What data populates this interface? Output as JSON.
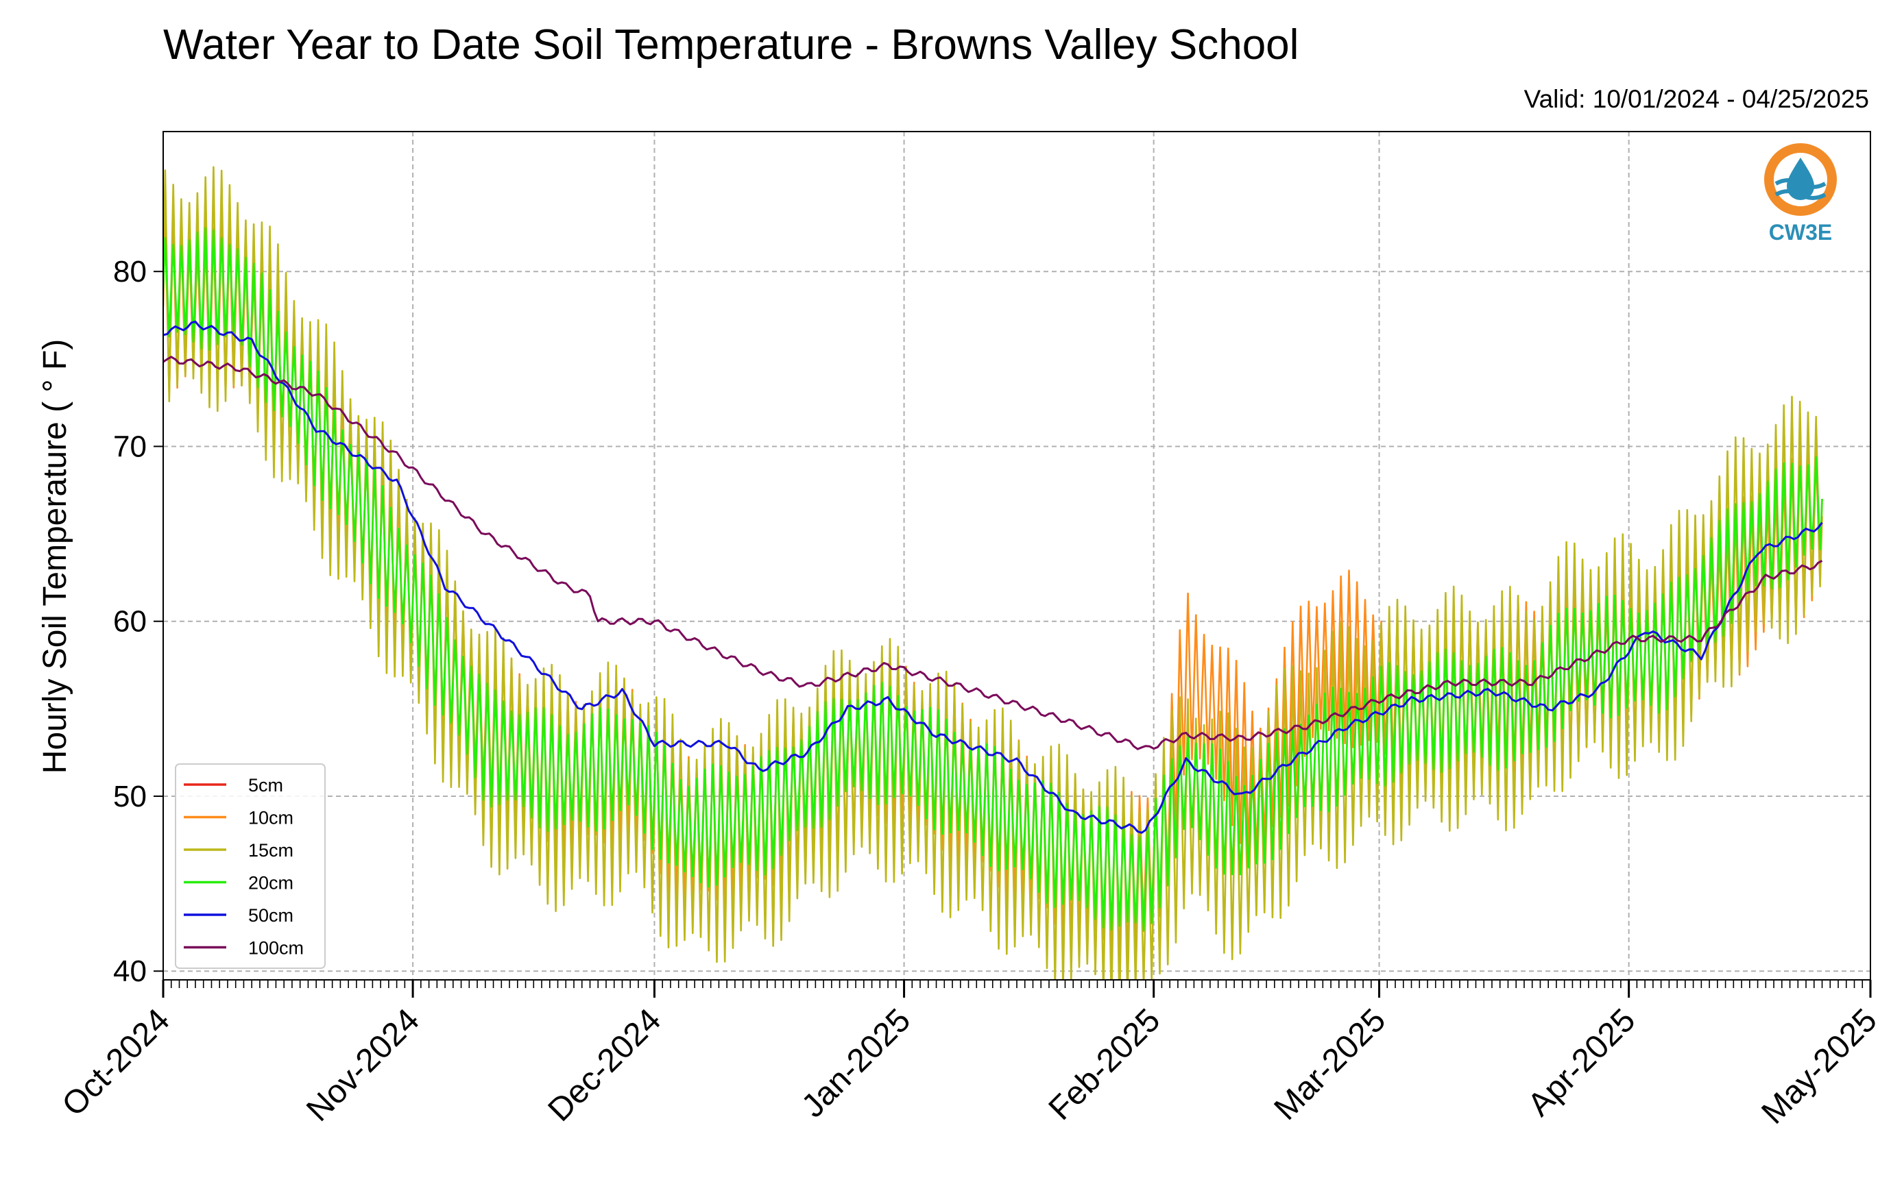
{
  "chart_data": {
    "type": "line",
    "title": "Water Year to Date Soil Temperature - Browns Valley School",
    "subtitle": "Valid: 10/01/2024 - 04/25/2025",
    "ylabel": "Hourly Soil Temperature ($^\\circ$F)",
    "ylabel_display": "Hourly Soil Temperature ( ° F)",
    "xlabel": "",
    "x_range": [
      "2024-10-01",
      "2025-05-01"
    ],
    "ylim": [
      39.5,
      88
    ],
    "yticks": [
      40,
      50,
      60,
      70,
      80
    ],
    "xticks": [
      {
        "date": "2024-10-01",
        "label": "Oct-2024"
      },
      {
        "date": "2024-11-01",
        "label": "Nov-2024"
      },
      {
        "date": "2024-12-01",
        "label": "Dec-2024"
      },
      {
        "date": "2025-01-01",
        "label": "Jan-2025"
      },
      {
        "date": "2025-02-01",
        "label": "Feb-2025"
      },
      {
        "date": "2025-03-01",
        "label": "Mar-2025"
      },
      {
        "date": "2025-04-01",
        "label": "Apr-2025"
      },
      {
        "date": "2025-05-01",
        "label": "May-2025"
      }
    ],
    "grid": true,
    "legend_position": "lower-left",
    "series": [
      {
        "name": "5cm",
        "color": "#e8261a",
        "daily_swing": 0,
        "x": [],
        "y": []
      },
      {
        "name": "10cm",
        "color": "#ff8c1a",
        "daily_swing": 5,
        "x": [
          "2024-10-01",
          "2024-10-10",
          "2024-10-20",
          "2024-10-30",
          "2024-11-10",
          "2024-11-20",
          "2024-11-28",
          "2024-12-05",
          "2024-12-15",
          "2024-12-25",
          "2024-12-31",
          "2025-01-10",
          "2025-01-20",
          "2025-01-28",
          "2025-02-02",
          "2025-02-05",
          "2025-02-10",
          "2025-02-14",
          "2025-02-20",
          "2025-02-25",
          "2025-03-05",
          "2025-03-15",
          "2025-03-25",
          "2025-04-05",
          "2025-04-15",
          "2025-04-25"
        ],
        "y": [
          78,
          78,
          71,
          63,
          54,
          51,
          52,
          48,
          49,
          52,
          53,
          50,
          47,
          45,
          47,
          57,
          54,
          50,
          57,
          58,
          55,
          56,
          57,
          58,
          62,
          66
        ]
      },
      {
        "name": "15cm",
        "color": "#bdb81a",
        "daily_swing": 7,
        "x": [
          "2024-10-01",
          "2024-10-10",
          "2024-10-20",
          "2024-10-30",
          "2024-11-10",
          "2024-11-20",
          "2024-11-28",
          "2024-12-05",
          "2024-12-15",
          "2024-12-25",
          "2024-12-31",
          "2025-01-10",
          "2025-01-20",
          "2025-01-31",
          "2025-02-05",
          "2025-02-12",
          "2025-02-20",
          "2025-03-01",
          "2025-03-10",
          "2025-03-20",
          "2025-03-25",
          "2025-04-05",
          "2025-04-15",
          "2025-04-25"
        ],
        "y": [
          79,
          79,
          71,
          63,
          53,
          50,
          51,
          47,
          48,
          52,
          52,
          49,
          46,
          44,
          50,
          47,
          52,
          54,
          55,
          55,
          58,
          58,
          64,
          67
        ]
      },
      {
        "name": "20cm",
        "color": "#26ee0a",
        "daily_swing": 3.5,
        "x": [
          "2024-10-01",
          "2024-10-10",
          "2024-10-20",
          "2024-10-30",
          "2024-11-10",
          "2024-11-20",
          "2024-11-28",
          "2024-12-05",
          "2024-12-15",
          "2024-12-25",
          "2024-12-31",
          "2025-01-10",
          "2025-01-20",
          "2025-01-31",
          "2025-02-05",
          "2025-02-12",
          "2025-02-20",
          "2025-03-01",
          "2025-03-10",
          "2025-03-20",
          "2025-03-25",
          "2025-04-05",
          "2025-04-15",
          "2025-04-25"
        ],
        "y": [
          79,
          79,
          71,
          63,
          53,
          51,
          52,
          48,
          49,
          53,
          53,
          50,
          47,
          45,
          51,
          48,
          52,
          54,
          55,
          55,
          58,
          58,
          64,
          67
        ]
      },
      {
        "name": "50cm",
        "color": "#1010dd",
        "daily_swing": 0,
        "x": [
          "2024-10-01",
          "2024-10-05",
          "2024-10-12",
          "2024-10-20",
          "2024-10-30",
          "2024-11-05",
          "2024-11-15",
          "2024-11-22",
          "2024-11-27",
          "2024-12-01",
          "2024-12-10",
          "2024-12-14",
          "2024-12-20",
          "2024-12-25",
          "2024-12-30",
          "2025-01-05",
          "2025-01-15",
          "2025-01-22",
          "2025-01-31",
          "2025-02-05",
          "2025-02-12",
          "2025-02-18",
          "2025-02-25",
          "2025-03-05",
          "2025-03-15",
          "2025-03-22",
          "2025-03-28",
          "2025-04-03",
          "2025-04-10",
          "2025-04-17",
          "2025-04-25"
        ],
        "y": [
          76.5,
          77,
          76,
          71,
          68,
          62,
          58,
          55,
          56,
          53,
          53,
          51.5,
          52.5,
          55,
          55.5,
          53.5,
          52,
          49,
          48,
          52,
          50,
          52,
          54,
          55.5,
          56,
          55,
          56,
          59.5,
          58,
          64,
          65.5
        ]
      },
      {
        "name": "100cm",
        "color": "#7a0a5a",
        "daily_swing": 0,
        "x": [
          "2024-10-01",
          "2024-10-10",
          "2024-10-20",
          "2024-10-30",
          "2024-11-10",
          "2024-11-20",
          "2024-11-23",
          "2024-11-24",
          "2024-12-01",
          "2024-12-10",
          "2024-12-15",
          "2024-12-20",
          "2024-12-30",
          "2025-01-10",
          "2025-01-20",
          "2025-01-31",
          "2025-02-05",
          "2025-02-12",
          "2025-02-20",
          "2025-03-01",
          "2025-03-10",
          "2025-03-20",
          "2025-04-01",
          "2025-04-10",
          "2025-04-18",
          "2025-04-25"
        ],
        "y": [
          75,
          74.5,
          73,
          69.5,
          65,
          62,
          61.5,
          60,
          60,
          58,
          57,
          56.3,
          57.5,
          56,
          54.5,
          52.7,
          53.5,
          53.3,
          54,
          55.5,
          56.5,
          56.5,
          59,
          59,
          62.5,
          63.3
        ]
      }
    ]
  },
  "logo": {
    "text": "CW3E",
    "ring_color": "#f28c28",
    "wave_color": "#2a8fb8"
  }
}
